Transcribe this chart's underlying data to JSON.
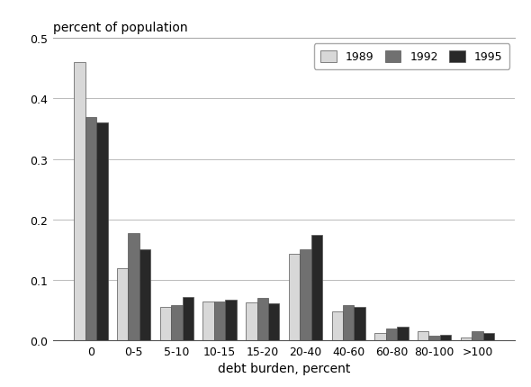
{
  "categories": [
    "0",
    "0-5",
    "5-10",
    "10-15",
    "15-20",
    "20-40",
    "40-60",
    "60-80",
    "80-100",
    ">100"
  ],
  "series": {
    "1989": [
      0.46,
      0.12,
      0.055,
      0.065,
      0.063,
      0.143,
      0.048,
      0.013,
      0.015,
      0.005
    ],
    "1992": [
      0.37,
      0.178,
      0.058,
      0.065,
      0.07,
      0.15,
      0.058,
      0.02,
      0.008,
      0.015
    ],
    "1995": [
      0.36,
      0.15,
      0.072,
      0.068,
      0.062,
      0.175,
      0.055,
      0.022,
      0.01,
      0.012
    ]
  },
  "colors": {
    "1989": "#d8d8d8",
    "1992": "#707070",
    "1995": "#282828"
  },
  "legend_labels": [
    "1989",
    "1992",
    "1995"
  ],
  "ylabel_text": "percent of population",
  "xlabel": "debt burden, percent",
  "ylim": [
    0,
    0.5
  ],
  "yticks": [
    0.0,
    0.1,
    0.2,
    0.3,
    0.4,
    0.5
  ],
  "bar_width": 0.26,
  "background_color": "#ffffff",
  "edge_color": "#555555"
}
